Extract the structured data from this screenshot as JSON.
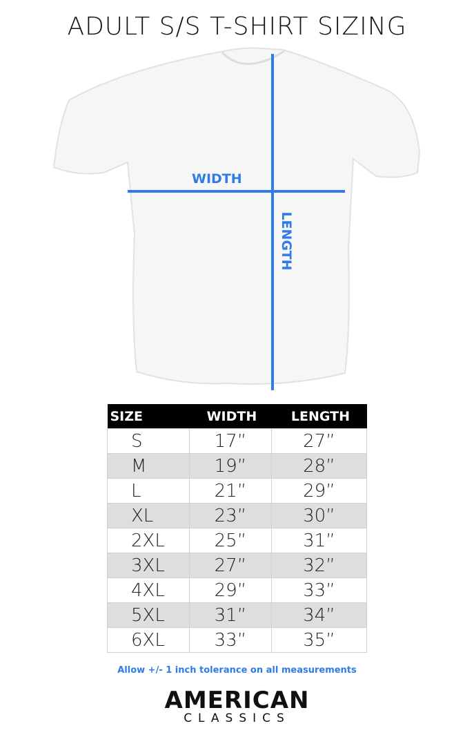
{
  "title": "ADULT S/S T-SHIRT SIZING",
  "diagram": {
    "width_label": "WIDTH",
    "length_label": "LENGTH",
    "line_color": "#2f7be8"
  },
  "table": {
    "headers": [
      "SIZE",
      "WIDTH",
      "LENGTH"
    ],
    "rows": [
      [
        "S",
        "17”",
        "27”"
      ],
      [
        "M",
        "19”",
        "28”"
      ],
      [
        "L",
        "21”",
        "29”"
      ],
      [
        "XL",
        "23”",
        "30”"
      ],
      [
        "2XL",
        "25”",
        "31”"
      ],
      [
        "3XL",
        "27”",
        "32”"
      ],
      [
        "4XL",
        "29”",
        "33”"
      ],
      [
        "5XL",
        "31”",
        "34”"
      ],
      [
        "6XL",
        "33”",
        "35”"
      ]
    ]
  },
  "note": "Allow +/- 1 inch tolerance on all measurements",
  "brand": {
    "line1": "AMERICAN",
    "line2": "CLASSICS"
  }
}
